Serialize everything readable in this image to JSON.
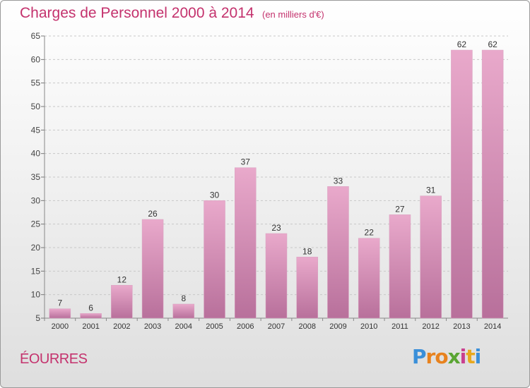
{
  "chart_data": {
    "type": "bar",
    "title": "Charges de Personnel 2000 à 2014",
    "subtitle": "(en milliers d'€)",
    "categories": [
      "2000",
      "2001",
      "2002",
      "2003",
      "2004",
      "2005",
      "2006",
      "2007",
      "2008",
      "2009",
      "2010",
      "2011",
      "2012",
      "2013",
      "2014"
    ],
    "values": [
      7,
      6,
      12,
      26,
      8,
      30,
      37,
      23,
      18,
      33,
      22,
      27,
      31,
      62,
      62
    ],
    "ylim": [
      5,
      65
    ],
    "yticks": [
      5,
      10,
      15,
      20,
      25,
      30,
      35,
      40,
      45,
      50,
      55,
      60,
      65
    ],
    "grid": true,
    "colors": {
      "bar_top": "#e9a9cb",
      "bar_bottom": "#b8709b",
      "accent": "#c4326d"
    }
  },
  "footer": {
    "commune": "ÉOURRES",
    "logo": "Proxiti",
    "logo_colors": [
      "#3a8fd9",
      "#e8821e",
      "#e8821e",
      "#5aa533",
      "#c93f8f",
      "#e8a81e",
      "#3a8fd9"
    ]
  }
}
